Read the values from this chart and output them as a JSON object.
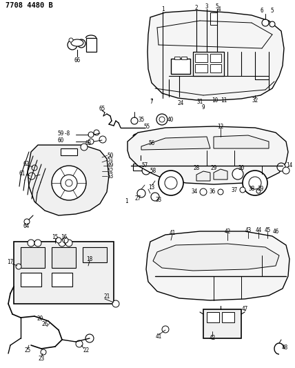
{
  "title": "7708 4480 B",
  "bg_color": "#ffffff",
  "lc": "#000000",
  "figsize": [
    4.28,
    5.33
  ],
  "dpi": 100,
  "lfs": 5.5,
  "title_fs": 7.5
}
